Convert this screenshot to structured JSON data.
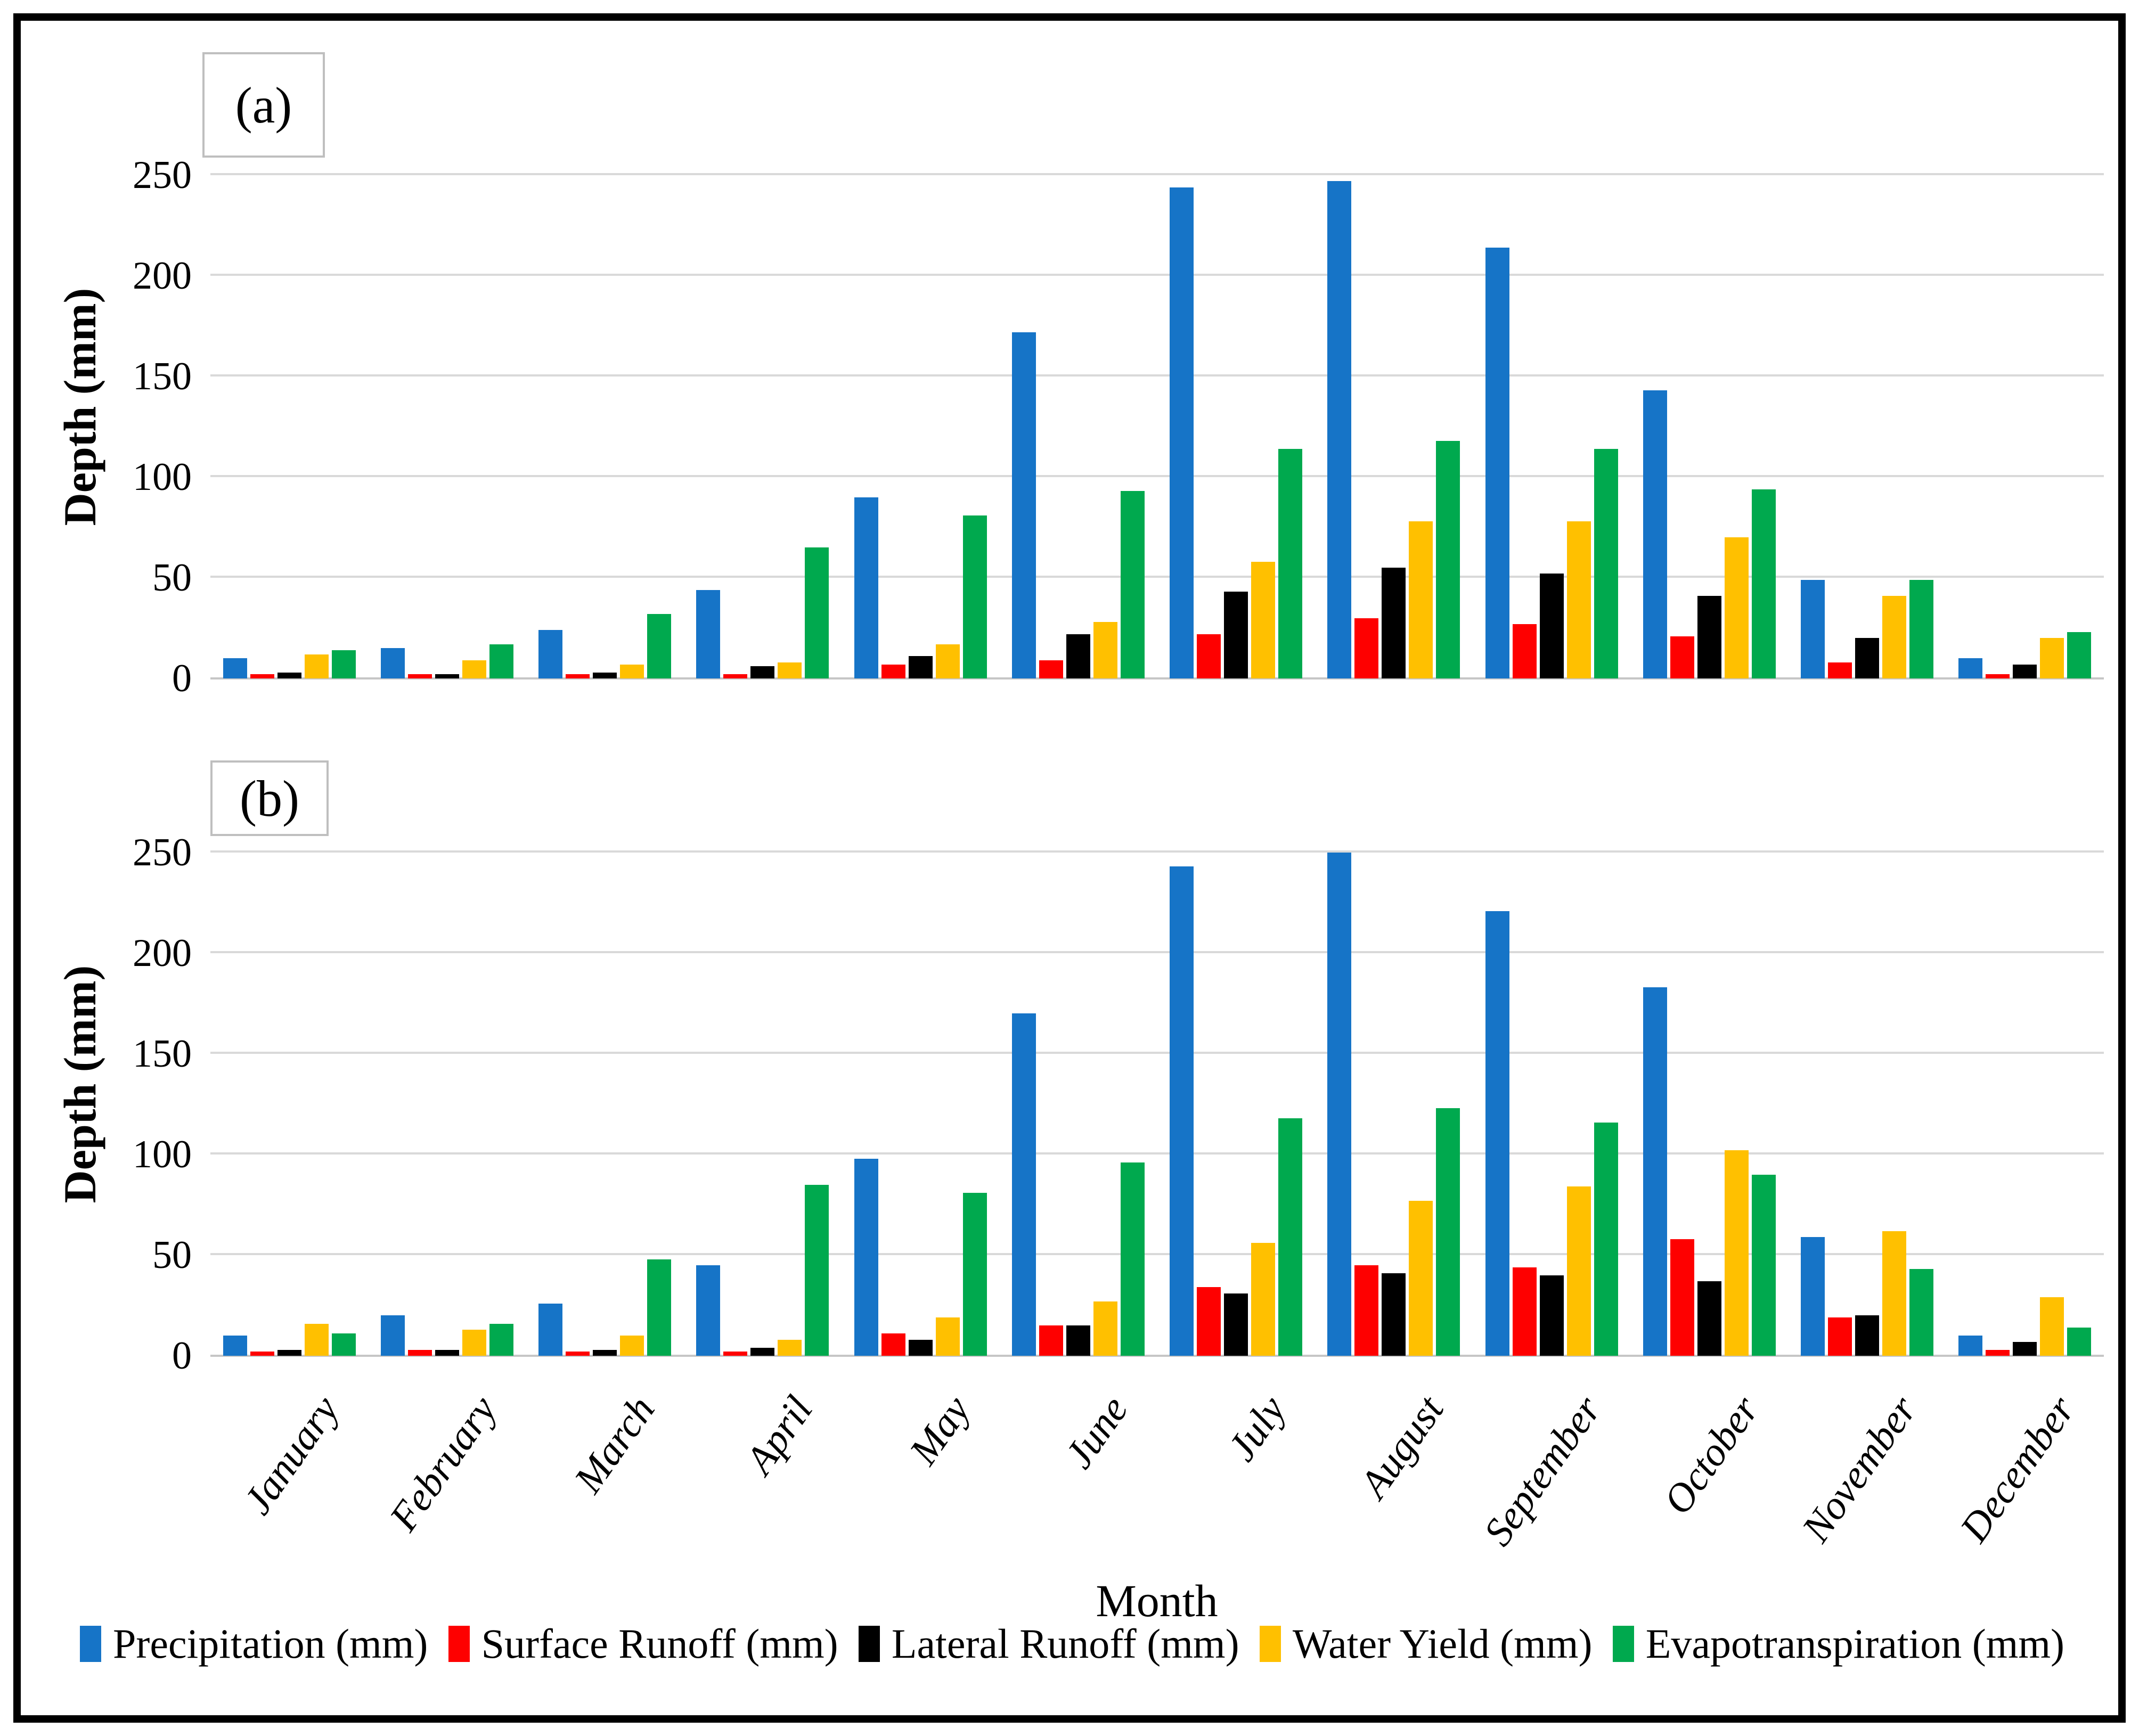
{
  "figure": {
    "panel_a_label": "(a)",
    "panel_b_label": "(b)",
    "y_axis_title": "Depth (mm)",
    "x_axis_title": "Month"
  },
  "colors": {
    "precipitation": "#1674C7",
    "surface_runoff": "#FE0000",
    "lateral_runoff": "#000000",
    "water_yield": "#FFC000",
    "evapotranspiration": "#00A94E",
    "gridline": "#D9D9D9",
    "axis_line": "#C6C6C6",
    "frame": "#000000"
  },
  "legend": [
    {
      "label": "Precipitation (mm)",
      "color": "#1674C7"
    },
    {
      "label": "Surface Runoff (mm)",
      "color": "#FE0000"
    },
    {
      "label": "Lateral Runoff (mm)",
      "color": "#000000"
    },
    {
      "label": "Water Yield (mm)",
      "color": "#FFC000"
    },
    {
      "label": "Evapotranspiration (mm)",
      "color": "#00A94E"
    }
  ],
  "chart_data": [
    {
      "type": "bar",
      "panel": "a",
      "title": "(a)",
      "categories": [
        "January",
        "February",
        "March",
        "April",
        "May",
        "June",
        "July",
        "August",
        "September",
        "October",
        "November",
        "December"
      ],
      "xlabel": "Month",
      "ylabel": "Depth (mm)",
      "ylim": [
        0,
        260
      ],
      "yticks": [
        0,
        50,
        100,
        150,
        200,
        250
      ],
      "grid": true,
      "legend_position": "bottom",
      "series": [
        {
          "name": "Precipitation (mm)",
          "color": "#1674C7",
          "values": [
            10,
            15,
            24,
            44,
            90,
            172,
            244,
            247,
            214,
            143,
            49,
            10
          ]
        },
        {
          "name": "Surface Runoff (mm)",
          "color": "#FE0000",
          "values": [
            2,
            2,
            2,
            2,
            7,
            9,
            22,
            30,
            27,
            21,
            8,
            2
          ]
        },
        {
          "name": "Lateral Runoff (mm)",
          "color": "#000000",
          "values": [
            3,
            2,
            3,
            6,
            11,
            22,
            43,
            55,
            52,
            41,
            20,
            7
          ]
        },
        {
          "name": "Water Yield (mm)",
          "color": "#FFC000",
          "values": [
            12,
            9,
            7,
            8,
            17,
            28,
            58,
            78,
            78,
            70,
            41,
            20
          ]
        },
        {
          "name": "Evapotranspiration (mm)",
          "color": "#00A94E",
          "values": [
            14,
            17,
            32,
            65,
            81,
            93,
            114,
            118,
            114,
            94,
            49,
            23
          ]
        }
      ]
    },
    {
      "type": "bar",
      "panel": "b",
      "title": "(b)",
      "categories": [
        "January",
        "February",
        "March",
        "April",
        "May",
        "June",
        "July",
        "August",
        "September",
        "October",
        "November",
        "December"
      ],
      "xlabel": "Month",
      "ylabel": "Depth (mm)",
      "ylim": [
        0,
        260
      ],
      "yticks": [
        0,
        50,
        100,
        150,
        200,
        250
      ],
      "grid": true,
      "legend_position": "bottom",
      "series": [
        {
          "name": "Precipitation (mm)",
          "color": "#1674C7",
          "values": [
            10,
            20,
            26,
            45,
            98,
            170,
            243,
            250,
            221,
            183,
            59,
            10
          ]
        },
        {
          "name": "Surface Runoff (mm)",
          "color": "#FE0000",
          "values": [
            2,
            3,
            2,
            2,
            11,
            15,
            34,
            45,
            44,
            58,
            19,
            3
          ]
        },
        {
          "name": "Lateral Runoff (mm)",
          "color": "#000000",
          "values": [
            3,
            3,
            3,
            4,
            8,
            15,
            31,
            41,
            40,
            37,
            20,
            7
          ]
        },
        {
          "name": "Water Yield (mm)",
          "color": "#FFC000",
          "values": [
            16,
            13,
            10,
            8,
            19,
            27,
            56,
            77,
            84,
            102,
            62,
            29
          ]
        },
        {
          "name": "Evapotranspiration (mm)",
          "color": "#00A94E",
          "values": [
            11,
            16,
            48,
            85,
            81,
            96,
            118,
            123,
            116,
            90,
            43,
            14
          ]
        }
      ]
    }
  ]
}
